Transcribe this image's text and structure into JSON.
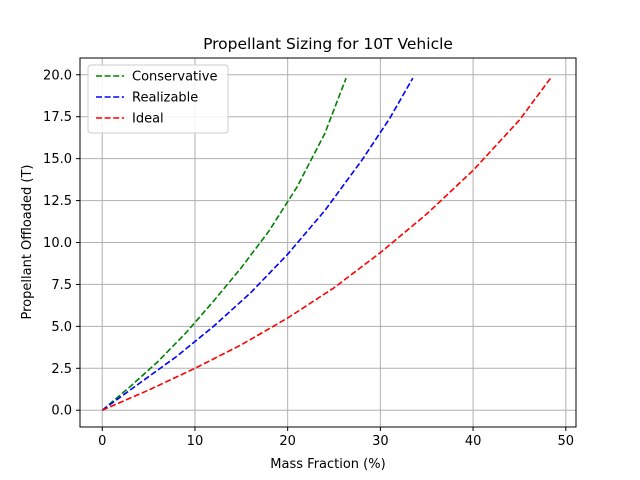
{
  "chart_data": {
    "type": "line",
    "title": "Propellant Sizing for 10T Vehicle",
    "xlabel": "Mass Fraction (%)",
    "ylabel": "Propellant Offloaded (T)",
    "xlim": [
      -2.4,
      51.1
    ],
    "ylim": [
      -1.0,
      21.0
    ],
    "xticks": [
      0,
      10,
      20,
      30,
      40,
      50
    ],
    "yticks": [
      0.0,
      2.5,
      5.0,
      7.5,
      10.0,
      12.5,
      15.0,
      17.5,
      20.0
    ],
    "xtick_labels": [
      "0",
      "10",
      "20",
      "30",
      "40",
      "50"
    ],
    "ytick_labels": [
      "0.0",
      "2.5",
      "5.0",
      "7.5",
      "10.0",
      "12.5",
      "15.0",
      "17.5",
      "20.0"
    ],
    "grid": true,
    "legend_position": "top-left",
    "series": [
      {
        "name": "Conservative",
        "color": "#008000",
        "x": [
          0,
          3,
          6,
          9,
          12,
          15,
          18,
          21,
          24,
          26.3
        ],
        "y": [
          0,
          1.4,
          2.9,
          4.6,
          6.5,
          8.5,
          10.7,
          13.3,
          16.5,
          19.8
        ]
      },
      {
        "name": "Realizable",
        "color": "#0000ff",
        "x": [
          0,
          4,
          8,
          12,
          16,
          20,
          24,
          28,
          31,
          33.5
        ],
        "y": [
          0,
          1.6,
          3.2,
          5.0,
          7.0,
          9.3,
          11.9,
          14.9,
          17.4,
          19.8
        ]
      },
      {
        "name": "Ideal",
        "color": "#ff0000",
        "x": [
          0,
          5,
          10,
          15,
          20,
          25,
          30,
          35,
          40,
          45,
          48.5
        ],
        "y": [
          0,
          1.2,
          2.5,
          3.9,
          5.5,
          7.3,
          9.4,
          11.7,
          14.3,
          17.3,
          19.9
        ]
      }
    ]
  }
}
